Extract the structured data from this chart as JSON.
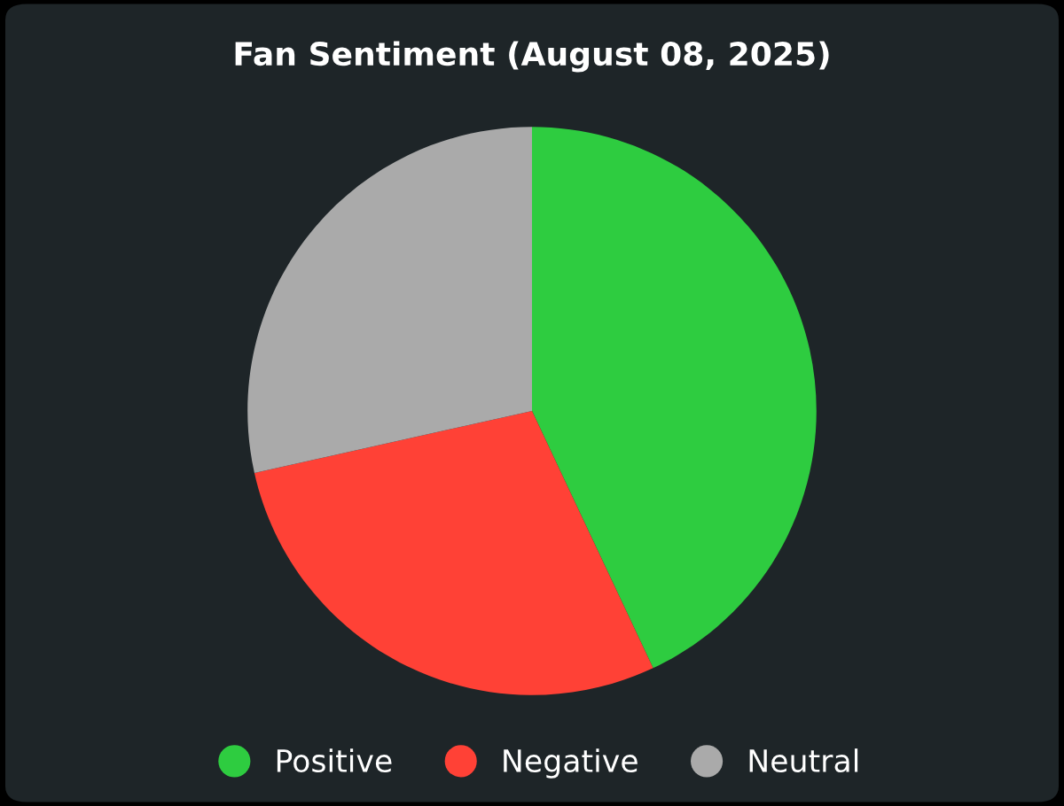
{
  "chart_data": {
    "type": "pie",
    "title": "Fan Sentiment (August 08, 2025)",
    "categories": [
      "Positive",
      "Negative",
      "Neutral"
    ],
    "values": [
      43,
      28.5,
      28.5
    ],
    "colors": [
      "#2ecc40",
      "#ff4136",
      "#aaaaaa"
    ],
    "legend": "bottom"
  }
}
